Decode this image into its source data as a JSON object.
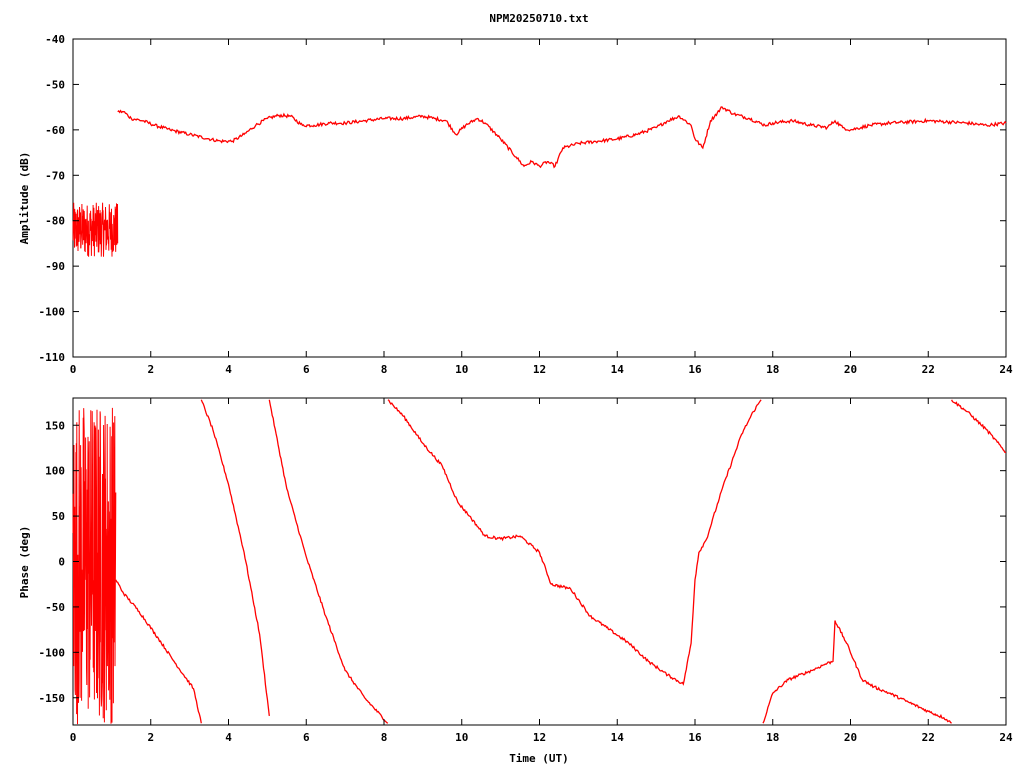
{
  "chart_data": [
    {
      "type": "line",
      "title": "NPM20250710.txt",
      "xlabel": "",
      "ylabel": "Amplitude (dB)",
      "xlim": [
        0,
        24
      ],
      "ylim": [
        -110,
        -40
      ],
      "xticks": [
        "0",
        "2",
        "4",
        "6",
        "8",
        "10",
        "12",
        "14",
        "16",
        "18",
        "20",
        "22",
        "24"
      ],
      "yticks": [
        "-40",
        "-50",
        "-60",
        "-70",
        "-80",
        "-90",
        "-100",
        "-110"
      ],
      "grid": false,
      "noise_zone": {
        "x_start": 0,
        "x_end": 1.15,
        "center": -82,
        "spread": 6
      },
      "series": [
        {
          "color": "#ff0000",
          "x": [
            1.15,
            1.3,
            1.5,
            1.8,
            2.1,
            2.5,
            3.0,
            3.5,
            3.8,
            4.1,
            4.4,
            4.7,
            5.0,
            5.3,
            5.6,
            5.9,
            6.2,
            6.6,
            7.0,
            7.5,
            8.0,
            8.5,
            9.0,
            9.3,
            9.6,
            9.85,
            10.1,
            10.4,
            10.6,
            11.0,
            11.4,
            11.6,
            11.8,
            12.0,
            12.2,
            12.4,
            12.6,
            13.0,
            13.5,
            14.0,
            14.5,
            15.0,
            15.3,
            15.6,
            15.9,
            16.0,
            16.2,
            16.4,
            16.7,
            17.0,
            17.4,
            17.8,
            18.0,
            18.5,
            19.0,
            19.4,
            19.6,
            19.8,
            20.0,
            20.5,
            21.0,
            22.0,
            23.0,
            23.5,
            24.0
          ],
          "y": [
            -56,
            -56,
            -57.5,
            -58,
            -59,
            -60,
            -61,
            -62,
            -62.5,
            -62.5,
            -61,
            -59,
            -57.5,
            -56.8,
            -57,
            -59,
            -59,
            -58.5,
            -58.5,
            -58,
            -57.5,
            -57.5,
            -57,
            -57.5,
            -58,
            -61,
            -59,
            -57.5,
            -58.5,
            -62,
            -66,
            -68,
            -67,
            -68,
            -67,
            -68,
            -64,
            -63,
            -62.5,
            -62,
            -61,
            -59.5,
            -58,
            -57,
            -59,
            -62,
            -64,
            -58,
            -55,
            -56.5,
            -57.5,
            -59,
            -58.5,
            -58,
            -59,
            -59.5,
            -58,
            -59.5,
            -60,
            -59,
            -58.5,
            -58,
            -58.5,
            -59,
            -58.5
          ]
        }
      ]
    },
    {
      "type": "line",
      "title": "",
      "xlabel": "Time (UT)",
      "ylabel": "Phase (deg)",
      "xlim": [
        0,
        24
      ],
      "ylim": [
        -180,
        180
      ],
      "xticks": [
        "0",
        "2",
        "4",
        "6",
        "8",
        "10",
        "12",
        "14",
        "16",
        "18",
        "20",
        "22",
        "24"
      ],
      "yticks": [
        "150",
        "100",
        "50",
        "0",
        "-50",
        "-100",
        "-150"
      ],
      "grid": false,
      "noise_zone": {
        "x_start": 0,
        "x_end": 1.1,
        "center": 0,
        "spread": 180
      },
      "series": [
        {
          "color": "#ff0000",
          "x": [
            1.1,
            1.3,
            1.7,
            2.2,
            2.6,
            3.1,
            3.3,
            null,
            3.3,
            3.6,
            4.0,
            4.4,
            4.8,
            5.05,
            null,
            5.05,
            5.5,
            6.0,
            6.5,
            7.0,
            7.5,
            8.1,
            null,
            8.1,
            8.5,
            9.0,
            9.5,
            9.9,
            10.2,
            10.6,
            11.0,
            11.5,
            12.0,
            12.3,
            12.8,
            13.3,
            13.8,
            14.3,
            14.8,
            15.3,
            15.7,
            15.9,
            16.0,
            16.1,
            16.3,
            16.7,
            17.2,
            17.5,
            17.7,
            null,
            17.75,
            18.0,
            18.4,
            19.0,
            19.4,
            19.55,
            19.6,
            19.9,
            20.3,
            20.6,
            21.0,
            21.5,
            22.0,
            22.4,
            22.6,
            null,
            22.6,
            23.0,
            23.5,
            24.0
          ],
          "y": [
            -20,
            -35,
            -55,
            -85,
            -110,
            -140,
            -178,
            null,
            178,
            145,
            85,
            10,
            -80,
            -170,
            null,
            178,
            80,
            5,
            -60,
            -120,
            -150,
            -178,
            null,
            178,
            160,
            130,
            105,
            65,
            50,
            28,
            25,
            28,
            10,
            -25,
            -30,
            -60,
            -75,
            -90,
            -110,
            -125,
            -135,
            -90,
            -20,
            10,
            25,
            80,
            140,
            165,
            178,
            null,
            -178,
            -145,
            -130,
            -120,
            -112,
            -110,
            -65,
            -90,
            -130,
            -138,
            -145,
            -155,
            -165,
            -172,
            -178,
            null,
            178,
            165,
            145,
            120
          ]
        }
      ]
    }
  ]
}
